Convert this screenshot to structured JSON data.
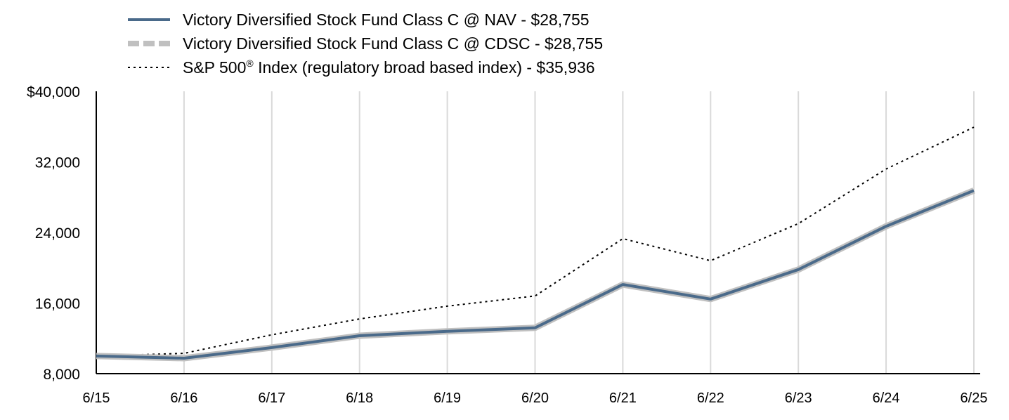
{
  "chart_data": {
    "type": "line",
    "categories": [
      "6/15",
      "6/16",
      "6/17",
      "6/18",
      "6/19",
      "6/20",
      "6/21",
      "6/22",
      "6/23",
      "6/24",
      "6/25"
    ],
    "y_ticks": [
      "$40,000",
      "32,000",
      "24,000",
      "16,000",
      "8,000"
    ],
    "y_tick_values": [
      40000,
      32000,
      24000,
      16000,
      8000
    ],
    "ylim": [
      8000,
      40000
    ],
    "grid": "vertical",
    "legend_position": "top-left",
    "series": [
      {
        "key": "nav",
        "name": "Victory Diversified Stock Fund Class C @ NAV - $28,755",
        "color": "#4a6a8a",
        "style": "solid",
        "values": [
          10000,
          9750,
          10950,
          12300,
          12800,
          13200,
          18100,
          16450,
          19800,
          24700,
          28755
        ]
      },
      {
        "key": "cdsc",
        "name": "Victory Diversified Stock Fund Class C @ CDSC - $28,755",
        "color": "#c0c0c0",
        "style": "dashed",
        "values": [
          10000,
          9750,
          10950,
          12300,
          12800,
          13200,
          18100,
          16450,
          19800,
          24700,
          28755
        ]
      },
      {
        "key": "sp500",
        "name_main": "S&P 500",
        "name_sup": "®",
        "name_rest": " Index (regulatory broad based index) - $35,936",
        "color": "#000000",
        "style": "dotted",
        "values": [
          10000,
          10300,
          12400,
          14200,
          15650,
          16800,
          23300,
          20800,
          25000,
          31200,
          35936
        ]
      }
    ]
  }
}
